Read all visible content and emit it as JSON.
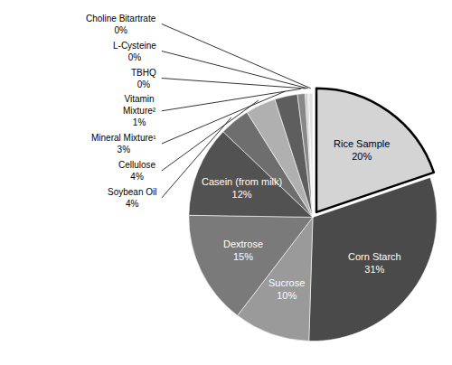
{
  "chart_data": {
    "type": "pie",
    "categories": [
      "Rice Sample",
      "Corn Starch",
      "Sucrose",
      "Dextrose",
      "Casein (from milk)",
      "Soybean Oil",
      "Cellulose",
      "Mineral Mixture¹",
      "Vitamin\nMixture²",
      "TBHQ",
      "L-Cysteine",
      "Choline Bitartrate"
    ],
    "values": [
      20,
      31,
      10,
      15,
      12,
      4,
      4,
      3,
      1,
      0.3,
      0.2,
      0.5
    ],
    "value_labels": [
      "20%",
      "31%",
      "10%",
      "15%",
      "12%",
      "4%",
      "4%",
      "3%",
      "1%",
      "0%",
      "0%",
      "0%"
    ],
    "colors": [
      "#d4d4d4",
      "#4a4a4a",
      "#9a9a9a",
      "#7a7a7a",
      "#525252",
      "#6e6e6e",
      "#b0b0b0",
      "#5e5e5e",
      "#888888",
      "#c0c0c0",
      "#d0d0d0",
      "#e0e0e0"
    ],
    "data_labels": true
  }
}
